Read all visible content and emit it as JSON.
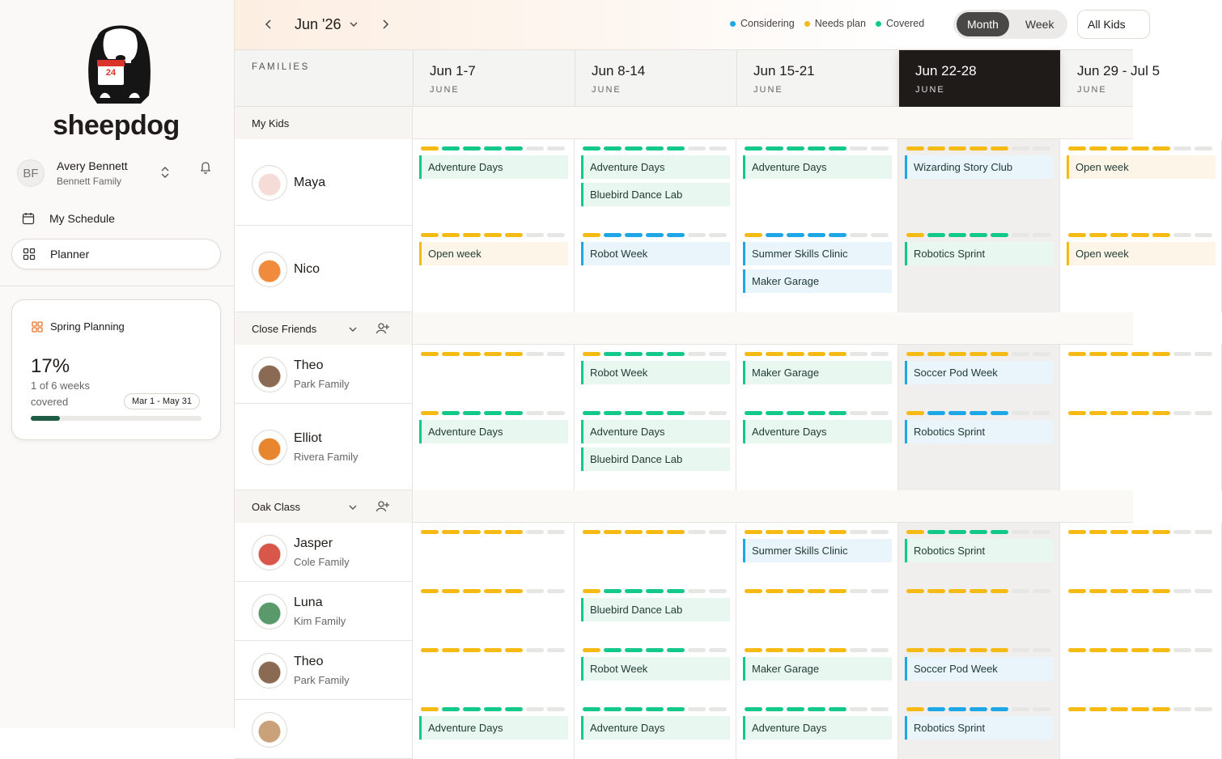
{
  "app": {
    "logo_text": "sheepdog",
    "logo_badge": "24"
  },
  "user": {
    "initials": "BF",
    "name": "Avery Bennett",
    "family": "Bennett Family"
  },
  "nav": [
    {
      "label": "My Schedule",
      "active": false
    },
    {
      "label": "Planner",
      "active": true
    }
  ],
  "plan_card": {
    "title": "Spring Planning",
    "progress": {
      "value": 17,
      "label": "17%"
    },
    "weeks_text": "1 of 6 weeks",
    "covered_text": "covered",
    "range": "Mar 1 - May 31"
  },
  "toolbar": {
    "month": "Jun '26",
    "legend": [
      {
        "label": "Considering",
        "color": "#1ea7e6",
        "tint": "#eaf4fb"
      },
      {
        "label": "Needs plan",
        "color": "#f5bb14",
        "tint": "#fdf5e8"
      },
      {
        "label": "Covered",
        "color": "#12c98a",
        "tint": "#e8f7f0"
      }
    ],
    "empty_color": "#e6e6e4",
    "views": [
      {
        "label": "Month",
        "active": true
      },
      {
        "label": "Week",
        "active": false
      }
    ],
    "filter": "All Kids"
  },
  "grid": {
    "families_header": "FAMILIES",
    "current_week": 3,
    "weeks": [
      {
        "label": "Jun 1-7",
        "month": "JUNE"
      },
      {
        "label": "Jun 8-14",
        "month": "JUNE"
      },
      {
        "label": "Jun 15-21",
        "month": "JUNE"
      },
      {
        "label": "Jun 22-28",
        "month": "JUNE"
      },
      {
        "label": "Jun 29 - Jul 5",
        "month": "JUNE"
      }
    ],
    "groups": [
      {
        "name": "My Kids",
        "collapsible": false,
        "kids": [
          {
            "name": "Maya",
            "family": null,
            "avatar": "#f6dcd6",
            "weeks": [
              {
                "days": "12222--",
                "activities": [
                  {
                    "name": "Adventure Days",
                    "status": 2
                  }
                ]
              },
              {
                "days": "22222--",
                "activities": [
                  {
                    "name": "Adventure Days",
                    "status": 2
                  },
                  {
                    "name": "Bluebird Dance Lab",
                    "status": 2
                  }
                ]
              },
              {
                "days": "22222--",
                "activities": [
                  {
                    "name": "Adventure Days",
                    "status": 2
                  }
                ]
              },
              {
                "days": "11111--",
                "activities": [
                  {
                    "name": "Wizarding Story Club",
                    "status": 0
                  }
                ]
              },
              {
                "days": "11111--",
                "activities": [
                  {
                    "name": "Open week",
                    "status": 1
                  }
                ]
              }
            ]
          },
          {
            "name": "Nico",
            "family": null,
            "avatar": "#f08a3c",
            "weeks": [
              {
                "days": "11111--",
                "activities": [
                  {
                    "name": "Open week",
                    "status": 1
                  }
                ]
              },
              {
                "days": "10000--",
                "activities": [
                  {
                    "name": "Robot Week",
                    "status": 0
                  }
                ]
              },
              {
                "days": "10000--",
                "activities": [
                  {
                    "name": "Summer Skills Clinic",
                    "status": 0
                  },
                  {
                    "name": "Maker Garage",
                    "status": 0
                  }
                ]
              },
              {
                "days": "12222--",
                "activities": [
                  {
                    "name": "Robotics Sprint",
                    "status": 2
                  }
                ]
              },
              {
                "days": "11111--",
                "activities": [
                  {
                    "name": "Open week",
                    "status": 1
                  }
                ]
              }
            ]
          }
        ]
      },
      {
        "name": "Close Friends",
        "collapsible": true,
        "kids": [
          {
            "name": "Theo",
            "family": "Park Family",
            "avatar": "#8a6a52",
            "weeks": [
              {
                "days": "11111--",
                "activities": []
              },
              {
                "days": "12222--",
                "activities": [
                  {
                    "name": "Robot Week",
                    "status": 2
                  }
                ]
              },
              {
                "days": "11111--",
                "activities": [
                  {
                    "name": "Maker Garage",
                    "status": 2
                  }
                ]
              },
              {
                "days": "11111--",
                "activities": [
                  {
                    "name": "Soccer Pod Week",
                    "status": 0
                  }
                ]
              },
              {
                "days": "11111--",
                "activities": []
              }
            ]
          },
          {
            "name": "Elliot",
            "family": "Rivera Family",
            "avatar": "#e7862e",
            "weeks": [
              {
                "days": "12222--",
                "activities": [
                  {
                    "name": "Adventure Days",
                    "status": 2
                  }
                ]
              },
              {
                "days": "22222--",
                "activities": [
                  {
                    "name": "Adventure Days",
                    "status": 2
                  },
                  {
                    "name": "Bluebird Dance Lab",
                    "status": 2
                  }
                ]
              },
              {
                "days": "22222--",
                "activities": [
                  {
                    "name": "Adventure Days",
                    "status": 2
                  }
                ]
              },
              {
                "days": "10000--",
                "activities": [
                  {
                    "name": "Robotics Sprint",
                    "status": 0
                  }
                ]
              },
              {
                "days": "11111--",
                "activities": []
              }
            ]
          }
        ]
      },
      {
        "name": "Oak Class",
        "collapsible": true,
        "kids": [
          {
            "name": "Jasper",
            "family": "Cole Family",
            "avatar": "#d9574a",
            "weeks": [
              {
                "days": "11111--",
                "activities": []
              },
              {
                "days": "11111--",
                "activities": []
              },
              {
                "days": "11111--",
                "activities": [
                  {
                    "name": "Summer Skills Clinic",
                    "status": 0
                  }
                ]
              },
              {
                "days": "12222--",
                "activities": [
                  {
                    "name": "Robotics Sprint",
                    "status": 2
                  }
                ]
              },
              {
                "days": "11111--",
                "activities": []
              }
            ]
          },
          {
            "name": "Luna",
            "family": "Kim Family",
            "avatar": "#5a9a6a",
            "weeks": [
              {
                "days": "11111--",
                "activities": []
              },
              {
                "days": "12222--",
                "activities": [
                  {
                    "name": "Bluebird Dance Lab",
                    "status": 2
                  }
                ]
              },
              {
                "days": "11111--",
                "activities": []
              },
              {
                "days": "11111--",
                "activities": []
              },
              {
                "days": "11111--",
                "activities": []
              }
            ]
          },
          {
            "name": "Theo",
            "family": "Park Family",
            "avatar": "#8a6a52",
            "weeks": [
              {
                "days": "11111--",
                "activities": []
              },
              {
                "days": "12222--",
                "activities": [
                  {
                    "name": "Robot Week",
                    "status": 2
                  }
                ]
              },
              {
                "days": "11111--",
                "activities": [
                  {
                    "name": "Maker Garage",
                    "status": 2
                  }
                ]
              },
              {
                "days": "11111--",
                "activities": [
                  {
                    "name": "Soccer Pod Week",
                    "status": 0
                  }
                ]
              },
              {
                "days": "11111--",
                "activities": []
              }
            ]
          },
          {
            "name": null,
            "family": null,
            "avatar": "#c9a27a",
            "weeks": [
              {
                "days": "12222--",
                "activities": [
                  {
                    "name": "Adventure Days",
                    "status": 2
                  }
                ]
              },
              {
                "days": "22222--",
                "activities": [
                  {
                    "name": "Adventure Days",
                    "status": 2
                  }
                ]
              },
              {
                "days": "22222--",
                "activities": [
                  {
                    "name": "Adventure Days",
                    "status": 2
                  }
                ]
              },
              {
                "days": "10000--",
                "activities": [
                  {
                    "name": "Robotics Sprint",
                    "status": 0
                  }
                ]
              },
              {
                "days": "11111--",
                "activities": []
              }
            ]
          }
        ]
      }
    ]
  }
}
